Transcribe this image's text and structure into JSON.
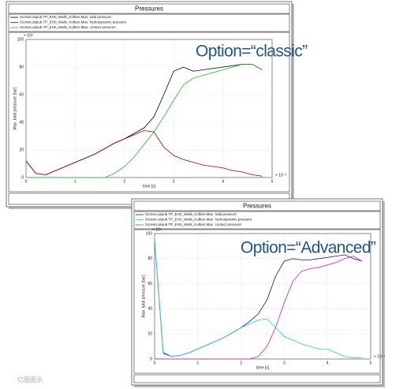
{
  "chart_data": [
    {
      "type": "line",
      "title": "Pressures",
      "annotation": "Option=“classic”",
      "x_label": "time [s]",
      "y_label": "Max. total pressure [bar]",
      "x_exponent": "× 10⁻²",
      "y_exponent": "× 10³",
      "x": [
        0,
        0.2,
        0.4,
        0.6,
        0.8,
        1.0,
        1.2,
        1.4,
        1.6,
        1.8,
        2.0,
        2.2,
        2.4,
        2.6,
        2.8,
        3.0,
        3.2,
        3.4,
        3.6,
        3.8,
        4.0,
        4.2,
        4.4,
        4.6,
        4.8
      ],
      "series": [
        {
          "name": "Screws.ukpub.TP_EH0_Walls_Kolben.Max. total pressure",
          "color": "#000000",
          "values": [
            12,
            3,
            2,
            5,
            8,
            11,
            14,
            17,
            21,
            25,
            28,
            32,
            36,
            44,
            60,
            77,
            80,
            77,
            78,
            79,
            80,
            81,
            82,
            82,
            78
          ]
        },
        {
          "name": "Screws.ukpub.TP_EH0_Walls_Kolben.Max. hydrodynamic pressure",
          "color": "#a80000",
          "values": [
            12,
            3,
            2,
            5,
            8,
            11,
            14,
            17,
            21,
            25,
            28,
            31,
            34,
            33,
            22,
            16,
            13,
            11,
            9,
            8,
            7,
            5,
            4,
            2,
            1
          ]
        },
        {
          "name": "Screws.ukpub.TP_EH0_Walls_Kolben.Max. contact pressure",
          "color": "#22bb22",
          "values": [
            0,
            0,
            0,
            0,
            0,
            0,
            0,
            0,
            0,
            3,
            8,
            15,
            24,
            33,
            44,
            56,
            67,
            72,
            74,
            76,
            78,
            80,
            82,
            82,
            78
          ]
        }
      ],
      "xlim": [
        0,
        5
      ],
      "ylim": [
        0,
        100
      ],
      "xticks": [
        0,
        1,
        2,
        3,
        4,
        5
      ],
      "yticks": [
        0,
        20,
        40,
        60,
        80,
        100
      ],
      "grid": true
    },
    {
      "type": "line",
      "title": "Pressures",
      "annotation": "Option=“Advanced”",
      "x_label": "time [s]",
      "y_label": "Max. total pressure [bar]",
      "x_exponent": "× 10⁻²",
      "y_exponent": "× 10³",
      "x": [
        0,
        0.2,
        0.4,
        0.6,
        0.8,
        1.0,
        1.2,
        1.4,
        1.6,
        1.8,
        2.0,
        2.2,
        2.4,
        2.6,
        2.8,
        3.0,
        3.2,
        3.4,
        3.6,
        3.8,
        4.0,
        4.2,
        4.4,
        4.6,
        4.8
      ],
      "series": [
        {
          "name": "Screws.ukpub.TP_EH0_Walls_Kolben.Max. total pressure",
          "color": "#1a1a7a",
          "values": [
            95,
            5,
            2,
            3,
            5,
            8,
            11,
            14,
            17,
            21,
            25,
            30,
            36,
            47,
            66,
            78,
            80,
            79,
            79,
            80,
            81,
            82,
            83,
            80,
            78
          ]
        },
        {
          "name": "Screws.ukpub.TP_EH0_Walls_Kolben.Max. hydrodynamic pressure",
          "color": "#22ccdd",
          "values": [
            95,
            4,
            2,
            3,
            5,
            8,
            11,
            14,
            17,
            21,
            25,
            28,
            31,
            32,
            25,
            18,
            15,
            12,
            10,
            8,
            8,
            5,
            2,
            1,
            1
          ]
        },
        {
          "name": "Screws.ukpub.TP_EH0_Walls_Kolben.Max. contact pressure",
          "color": "#cc22bb",
          "values": [
            0,
            0,
            0,
            0,
            0,
            0,
            0,
            0,
            0,
            0,
            0,
            0,
            2,
            10,
            25,
            45,
            62,
            70,
            72,
            73,
            75,
            77,
            80,
            82,
            78
          ]
        }
      ],
      "xlim": [
        0,
        5
      ],
      "ylim": [
        0,
        100
      ],
      "xticks": [
        0,
        1,
        2,
        3,
        4,
        5
      ],
      "yticks": [
        0,
        20,
        40,
        60,
        80,
        100
      ],
      "grid": true
    }
  ],
  "watermark": "亿图图示"
}
